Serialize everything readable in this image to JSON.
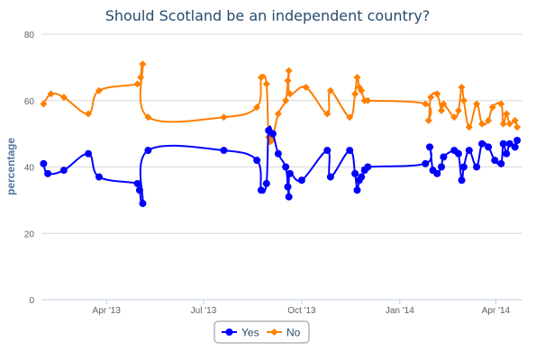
{
  "chart_data": {
    "type": "line",
    "title": "Should Scotland be an independent country?",
    "xlabel": "",
    "ylabel": "percentage",
    "ylim": [
      0,
      80
    ],
    "yticks": [
      "0",
      "20",
      "40",
      "60",
      "80"
    ],
    "xlim": [
      "2013-01-30",
      "2014-04-26"
    ],
    "xticks": [
      {
        "label": "Apr '13",
        "date": "2013-04-01"
      },
      {
        "label": "Jul '13",
        "date": "2013-07-01"
      },
      {
        "label": "Oct '13",
        "date": "2013-10-01"
      },
      {
        "label": "Jan '14",
        "date": "2014-01-01"
      },
      {
        "label": "Apr '14",
        "date": "2014-04-01"
      }
    ],
    "grid": true,
    "legend": "bottom-center",
    "colors": {
      "Yes": "#0000ff",
      "No": "#ff7f00"
    },
    "series": [
      {
        "name": "Yes",
        "marker": "circle",
        "color": "#0000ff",
        "points": [
          [
            "2013-02-01",
            41
          ],
          [
            "2013-02-05",
            38
          ],
          [
            "2013-02-20",
            39
          ],
          [
            "2013-03-15",
            44
          ],
          [
            "2013-03-25",
            37
          ],
          [
            "2013-04-30",
            35
          ],
          [
            "2013-05-02",
            33
          ],
          [
            "2013-05-05",
            29
          ],
          [
            "2013-05-10",
            45
          ],
          [
            "2013-07-20",
            45
          ],
          [
            "2013-08-20",
            42
          ],
          [
            "2013-08-24",
            33
          ],
          [
            "2013-08-29",
            35
          ],
          [
            "2013-08-31",
            51
          ],
          [
            "2013-09-04",
            50
          ],
          [
            "2013-09-09",
            44
          ],
          [
            "2013-09-16",
            40
          ],
          [
            "2013-09-18",
            34
          ],
          [
            "2013-09-19",
            31
          ],
          [
            "2013-09-20",
            38
          ],
          [
            "2013-10-01",
            36
          ],
          [
            "2013-10-25",
            45
          ],
          [
            "2013-10-28",
            37
          ],
          [
            "2013-11-15",
            45
          ],
          [
            "2013-11-20",
            38
          ],
          [
            "2013-11-22",
            33
          ],
          [
            "2013-11-24",
            36
          ],
          [
            "2013-11-26",
            37
          ],
          [
            "2013-11-29",
            39
          ],
          [
            "2013-12-02",
            40
          ],
          [
            "2014-01-25",
            41
          ],
          [
            "2014-01-29",
            46
          ],
          [
            "2014-02-01",
            39
          ],
          [
            "2014-02-05",
            38
          ],
          [
            "2014-02-09",
            40
          ],
          [
            "2014-02-11",
            43
          ],
          [
            "2014-02-21",
            45
          ],
          [
            "2014-02-25",
            44
          ],
          [
            "2014-02-28",
            36
          ],
          [
            "2014-03-02",
            40
          ],
          [
            "2014-03-07",
            45
          ],
          [
            "2014-03-14",
            40
          ],
          [
            "2014-03-19",
            47
          ],
          [
            "2014-03-25",
            46
          ],
          [
            "2014-03-31",
            42
          ],
          [
            "2014-04-06",
            41
          ],
          [
            "2014-04-08",
            47
          ],
          [
            "2014-04-11",
            44
          ],
          [
            "2014-04-14",
            47
          ],
          [
            "2014-04-19",
            46
          ],
          [
            "2014-04-21",
            48
          ]
        ]
      },
      {
        "name": "No",
        "marker": "diamond",
        "color": "#ff7f00",
        "points": [
          [
            "2013-02-01",
            59
          ],
          [
            "2013-02-08",
            62
          ],
          [
            "2013-02-20",
            61
          ],
          [
            "2013-03-15",
            56
          ],
          [
            "2013-03-25",
            63
          ],
          [
            "2013-04-30",
            65
          ],
          [
            "2013-05-03",
            67
          ],
          [
            "2013-05-05",
            71
          ],
          [
            "2013-05-10",
            55
          ],
          [
            "2013-07-20",
            55
          ],
          [
            "2013-08-20",
            58
          ],
          [
            "2013-08-24",
            67
          ],
          [
            "2013-08-29",
            65
          ],
          [
            "2013-08-31",
            49
          ],
          [
            "2013-09-03",
            48
          ],
          [
            "2013-09-09",
            56
          ],
          [
            "2013-09-16",
            60
          ],
          [
            "2013-09-18",
            66
          ],
          [
            "2013-09-19",
            69
          ],
          [
            "2013-09-20",
            62
          ],
          [
            "2013-10-05",
            64
          ],
          [
            "2013-10-25",
            56
          ],
          [
            "2013-10-28",
            63
          ],
          [
            "2013-11-15",
            55
          ],
          [
            "2013-11-20",
            62
          ],
          [
            "2013-11-22",
            67
          ],
          [
            "2013-11-24",
            64
          ],
          [
            "2013-11-26",
            63
          ],
          [
            "2013-11-29",
            60
          ],
          [
            "2013-12-02",
            60
          ],
          [
            "2014-01-25",
            59
          ],
          [
            "2014-01-28",
            54
          ],
          [
            "2014-01-30",
            61
          ],
          [
            "2014-02-05",
            62
          ],
          [
            "2014-02-09",
            57
          ],
          [
            "2014-02-11",
            59
          ],
          [
            "2014-02-21",
            55
          ],
          [
            "2014-02-25",
            57
          ],
          [
            "2014-02-28",
            64
          ],
          [
            "2014-03-02",
            60
          ],
          [
            "2014-03-07",
            52
          ],
          [
            "2014-03-14",
            59
          ],
          [
            "2014-03-19",
            53
          ],
          [
            "2014-03-25",
            54
          ],
          [
            "2014-03-29",
            58
          ],
          [
            "2014-04-06",
            59
          ],
          [
            "2014-04-08",
            53
          ],
          [
            "2014-04-11",
            56
          ],
          [
            "2014-04-14",
            53
          ],
          [
            "2014-04-19",
            54
          ],
          [
            "2014-04-21",
            52
          ]
        ]
      }
    ]
  }
}
